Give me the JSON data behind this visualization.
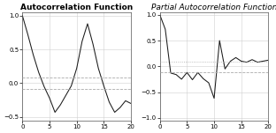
{
  "acf_title": "Autocorrelation Function",
  "pacf_title": "Partial Autocorrelation Function",
  "acf_ylim": [
    -0.55,
    1.05
  ],
  "pacf_ylim": [
    -1.05,
    1.05
  ],
  "xlim": [
    0,
    20
  ],
  "acf_yticks": [
    -0.5,
    0,
    0.5,
    1
  ],
  "pacf_yticks": [
    -1,
    -0.5,
    0,
    0.5,
    1
  ],
  "acf_xticks": [
    0,
    5,
    10,
    15,
    20
  ],
  "pacf_xticks": [
    0,
    5,
    10,
    15,
    20
  ],
  "conf_lines_acf": [
    0.09,
    -0.09
  ],
  "conf_lines_pacf_dot": 0.09,
  "conf_lines_pacf_dash": -0.12,
  "acf_x": [
    0,
    1,
    2,
    3,
    4,
    5,
    6,
    7,
    8,
    9,
    10,
    11,
    12,
    13,
    14,
    15,
    16,
    17,
    18,
    19,
    20
  ],
  "acf_y": [
    1.0,
    0.72,
    0.42,
    0.16,
    -0.05,
    -0.22,
    -0.43,
    -0.32,
    -0.18,
    -0.04,
    0.22,
    0.62,
    0.88,
    0.58,
    0.22,
    -0.04,
    -0.28,
    -0.43,
    -0.36,
    -0.26,
    -0.3
  ],
  "pacf_x": [
    0,
    1,
    2,
    3,
    4,
    5,
    6,
    7,
    8,
    9,
    10,
    11,
    12,
    13,
    14,
    15,
    16,
    17,
    18,
    19,
    20
  ],
  "pacf_y": [
    1.0,
    0.72,
    -0.13,
    -0.16,
    -0.25,
    -0.12,
    -0.26,
    -0.12,
    -0.24,
    -0.32,
    -0.62,
    0.5,
    -0.05,
    0.1,
    0.17,
    0.1,
    0.08,
    0.13,
    0.08,
    0.1,
    0.12
  ],
  "line_color": "#1a1a1a",
  "conf_color": "#aaaaaa",
  "grid_color": "#d0d0d0",
  "bg_color": "#ffffff",
  "spine_color": "#555555",
  "acf_title_fontsize": 6.5,
  "pacf_title_fontsize": 6.5,
  "tick_fontsize": 5.0,
  "line_width": 0.75
}
